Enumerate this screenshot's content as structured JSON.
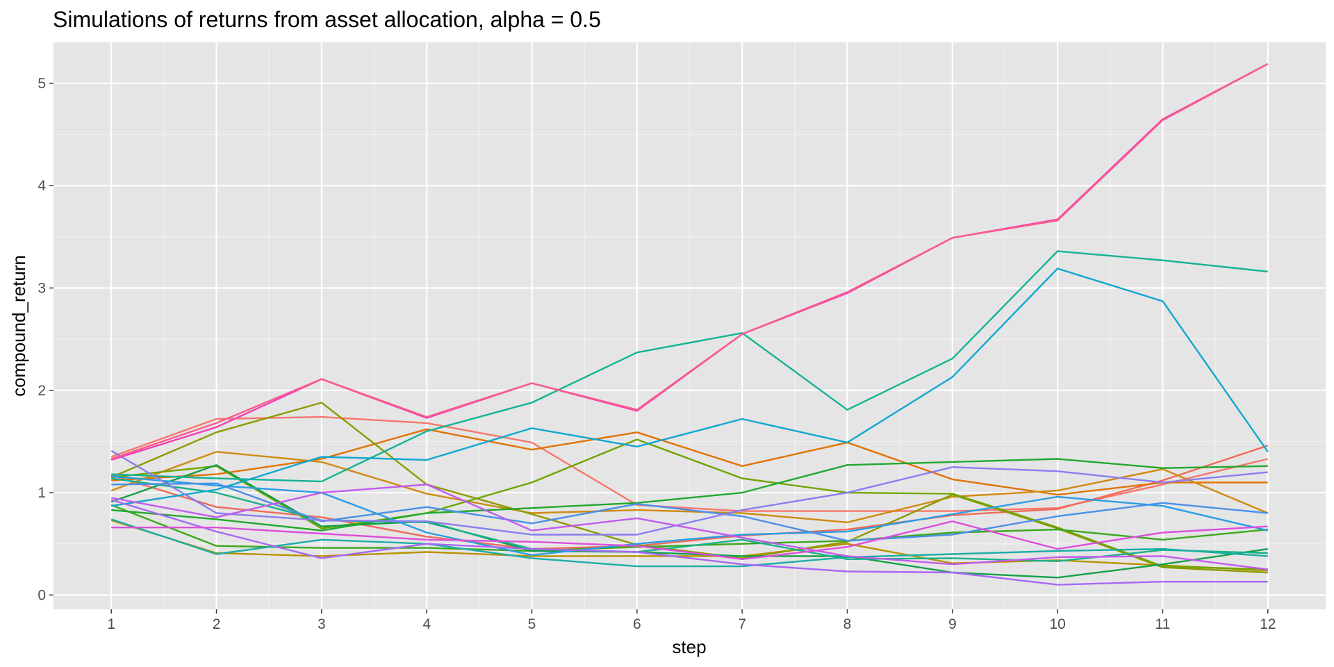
{
  "chart_data": {
    "type": "line",
    "title": "Simulations of returns from asset allocation, alpha = 0.5",
    "xlabel": "step",
    "ylabel": "compound_return",
    "x": [
      1,
      2,
      3,
      4,
      5,
      6,
      7,
      8,
      9,
      10,
      11,
      12
    ],
    "xlim": [
      0.45,
      12.55
    ],
    "ylim": [
      -0.14,
      5.4
    ],
    "x_ticks": [
      1,
      2,
      3,
      4,
      5,
      6,
      7,
      8,
      9,
      10,
      11,
      12
    ],
    "y_ticks": [
      0,
      1,
      2,
      3,
      4,
      5
    ],
    "grid": true,
    "legend": "none",
    "colors": {
      "panel_background": "#e5e5e5",
      "grid_major": "#ffffff",
      "grid_minor": "#f0f0f0",
      "axis_text": "#4d4d4d",
      "tick_mark": "#333333"
    },
    "series": [
      {
        "color": "#F8766D",
        "values": [
          1.35,
          1.72,
          1.74,
          1.68,
          1.49,
          0.88,
          0.82,
          0.82,
          0.82,
          0.85,
          1.08,
          1.33
        ]
      },
      {
        "color": "#EE6A59",
        "values": [
          1.17,
          0.86,
          0.76,
          0.57,
          0.45,
          0.48,
          0.58,
          0.64,
          0.78,
          0.84,
          1.12,
          1.46
        ]
      },
      {
        "color": "#E27200",
        "values": [
          1.12,
          1.18,
          1.33,
          1.62,
          1.42,
          1.59,
          1.26,
          1.49,
          1.13,
          0.98,
          1.1,
          1.1
        ]
      },
      {
        "color": "#D08A0F",
        "values": [
          1.02,
          1.4,
          1.3,
          0.99,
          0.8,
          0.83,
          0.8,
          0.71,
          0.96,
          1.02,
          1.23,
          0.8
        ]
      },
      {
        "color": "#B89200",
        "values": [
          0.73,
          0.41,
          0.38,
          0.42,
          0.38,
          0.38,
          0.38,
          0.5,
          0.31,
          0.34,
          0.29,
          0.24
        ]
      },
      {
        "color": "#8E9A00",
        "values": [
          1.15,
          1.59,
          1.88,
          1.08,
          0.79,
          0.49,
          0.36,
          0.52,
          0.98,
          0.65,
          0.27,
          0.22
        ]
      },
      {
        "color": "#6FA500",
        "values": [
          1.15,
          1.26,
          0.65,
          0.8,
          1.1,
          1.52,
          1.14,
          1.0,
          0.99,
          0.66,
          0.28,
          0.25
        ]
      },
      {
        "color": "#3BA81E",
        "values": [
          0.88,
          0.48,
          0.46,
          0.46,
          0.43,
          0.47,
          0.5,
          0.53,
          0.61,
          0.64,
          0.54,
          0.64
        ]
      },
      {
        "color": "#21A82D",
        "values": [
          0.83,
          0.74,
          0.63,
          0.8,
          0.85,
          0.9,
          1.0,
          1.27,
          1.3,
          1.33,
          1.24,
          1.26
        ]
      },
      {
        "color": "#13A04A",
        "values": [
          0.91,
          1.27,
          0.67,
          0.72,
          0.43,
          0.42,
          0.38,
          0.38,
          0.22,
          0.17,
          0.3,
          0.45
        ]
      },
      {
        "color": "#1BB08A",
        "values": [
          1.14,
          1.0,
          0.73,
          0.71,
          0.45,
          0.42,
          0.54,
          0.35,
          0.36,
          0.33,
          0.44,
          0.41
        ]
      },
      {
        "color": "#14B395",
        "values": [
          1.18,
          1.14,
          1.11,
          1.6,
          1.88,
          2.37,
          2.56,
          1.81,
          2.31,
          3.36,
          3.27,
          3.16
        ]
      },
      {
        "color": "#1CADA6",
        "values": [
          0.74,
          0.4,
          0.54,
          0.5,
          0.36,
          0.28,
          0.28,
          0.37,
          0.4,
          0.43,
          0.45,
          0.38
        ]
      },
      {
        "color": "#12A7D0",
        "values": [
          0.87,
          1.03,
          1.35,
          1.32,
          1.63,
          1.45,
          1.72,
          1.49,
          2.13,
          3.19,
          2.87,
          1.4
        ]
      },
      {
        "color": "#2A9DE6",
        "values": [
          1.16,
          1.07,
          1.0,
          0.61,
          0.39,
          0.5,
          0.59,
          0.62,
          0.79,
          0.96,
          0.87,
          0.63
        ]
      },
      {
        "color": "#4A90E8",
        "values": [
          1.08,
          1.09,
          0.72,
          0.86,
          0.7,
          0.89,
          0.77,
          0.53,
          0.59,
          0.77,
          0.9,
          0.8
        ]
      },
      {
        "color": "#8A7DF0",
        "values": [
          1.41,
          0.8,
          0.73,
          0.72,
          0.59,
          0.59,
          0.83,
          1.0,
          1.25,
          1.21,
          1.1,
          1.2
        ]
      },
      {
        "color": "#A867F5",
        "values": [
          0.93,
          0.62,
          0.36,
          0.5,
          0.45,
          0.42,
          0.3,
          0.23,
          0.22,
          0.1,
          0.13,
          0.13
        ]
      },
      {
        "color": "#C35AEE",
        "values": [
          0.95,
          0.76,
          1.0,
          1.08,
          0.63,
          0.75,
          0.56,
          0.38,
          0.3,
          0.37,
          0.38,
          0.25
        ]
      },
      {
        "color": "#DC4FDC",
        "values": [
          0.66,
          0.66,
          0.6,
          0.54,
          0.52,
          0.48,
          0.35,
          0.47,
          0.72,
          0.45,
          0.61,
          0.67
        ]
      },
      {
        "color": "#F23FB4",
        "values": [
          1.32,
          1.64,
          2.11,
          1.73,
          2.07,
          1.8,
          2.55,
          2.95,
          3.49,
          3.67,
          4.65,
          5.19
        ]
      },
      {
        "color": "#FA5A8E",
        "values": [
          1.33,
          1.68,
          2.11,
          1.74,
          2.07,
          1.81,
          2.55,
          2.96,
          3.49,
          3.66,
          4.64,
          5.19
        ]
      }
    ]
  }
}
